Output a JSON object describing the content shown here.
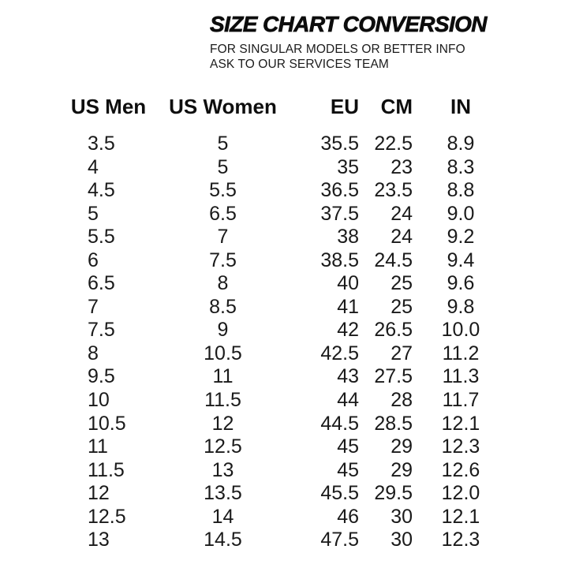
{
  "header": {
    "title": "SIZE CHART CONVERSION",
    "subtitle_line1": "FOR SINGULAR MODELS OR BETTER INFO",
    "subtitle_line2": "ASK TO OUR SERVICES TEAM"
  },
  "colors": {
    "background": "#ffffff",
    "text": "#161616",
    "title": "#0c0c0c"
  },
  "chart_data": {
    "type": "table",
    "title": "SIZE CHART CONVERSION",
    "columns": [
      "US Men",
      "US Women",
      "EU",
      "CM",
      "IN"
    ],
    "rows": [
      [
        "3.5",
        "5",
        "35.5",
        "22.5",
        "8.9"
      ],
      [
        "4",
        "5",
        "35",
        "23",
        "8.3"
      ],
      [
        "4.5",
        "5.5",
        "36.5",
        "23.5",
        "8.8"
      ],
      [
        "5",
        "6.5",
        "37.5",
        "24",
        "9.0"
      ],
      [
        "5.5",
        "7",
        "38",
        "24",
        "9.2"
      ],
      [
        "6",
        "7.5",
        "38.5",
        "24.5",
        "9.4"
      ],
      [
        "6.5",
        "8",
        "40",
        "25",
        "9.6"
      ],
      [
        "7",
        "8.5",
        "41",
        "25",
        "9.8"
      ],
      [
        "7.5",
        "9",
        "42",
        "26.5",
        "10.0"
      ],
      [
        "8",
        "10.5",
        "42.5",
        "27",
        "11.2"
      ],
      [
        "9.5",
        "11",
        "43",
        "27.5",
        "11.3"
      ],
      [
        "10",
        "11.5",
        "44",
        "28",
        "11.7"
      ],
      [
        "10.5",
        "12",
        "44.5",
        "28.5",
        "12.1"
      ],
      [
        "11",
        "12.5",
        "45",
        "29",
        "12.3"
      ],
      [
        "11.5",
        "13",
        "45",
        "29",
        "12.6"
      ],
      [
        "12",
        "13.5",
        "45.5",
        "29.5",
        "12.0"
      ],
      [
        "12.5",
        "14",
        "46",
        "30",
        "12.1"
      ],
      [
        "13",
        "14.5",
        "47.5",
        "30",
        "12.3"
      ]
    ],
    "layout": {
      "grid": "off",
      "header_style": "bold",
      "column_alignments": [
        "left",
        "center",
        "right",
        "right",
        "center"
      ]
    }
  }
}
